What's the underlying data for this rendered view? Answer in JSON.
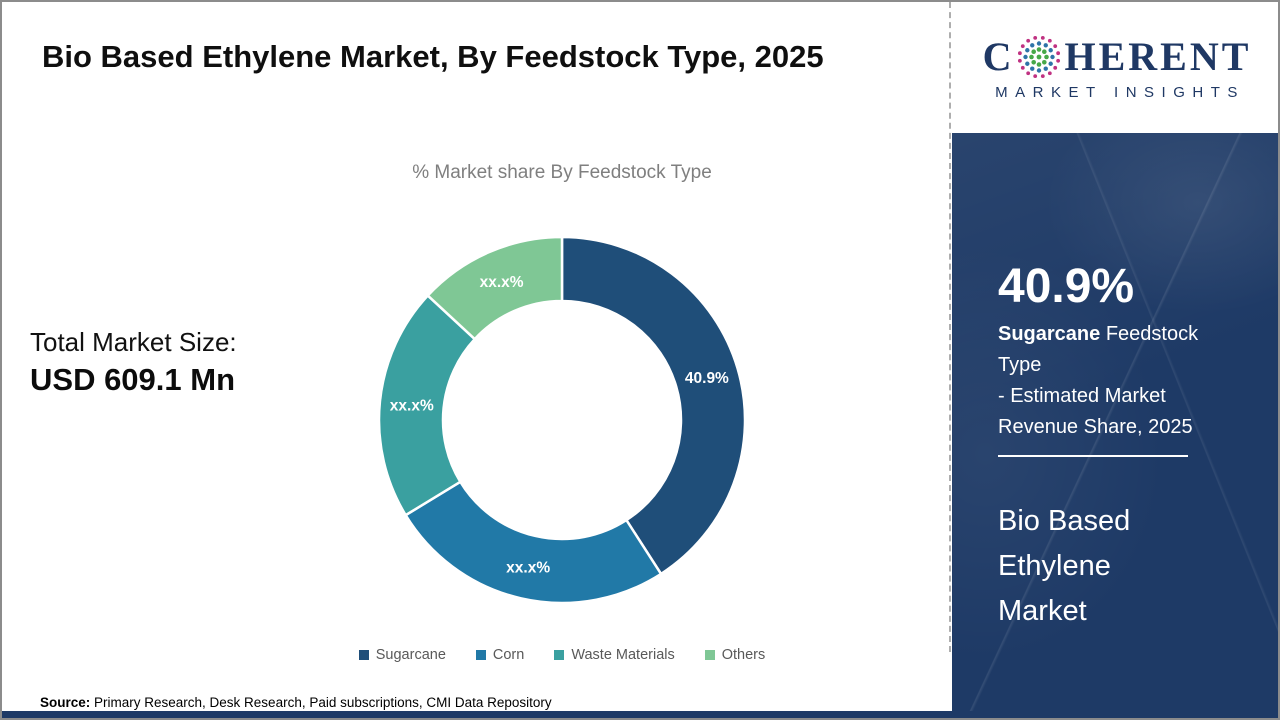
{
  "header": {
    "title": "Bio Based Ethylene Market, By Feedstock Type, 2025"
  },
  "logo": {
    "prefix": "C",
    "suffix": "HERENT",
    "subtitle": "MARKET INSIGHTS",
    "text_color": "#1f3864",
    "globe_colors": {
      "center": "#46a848",
      "mid": "#2e74a8",
      "outer": "#c03282"
    }
  },
  "left_panel": {
    "total_label": "Total Market Size:",
    "total_value": "USD 609.1 Mn"
  },
  "chart_data": {
    "type": "pie",
    "variant": "donut",
    "title": "% Market share By Feedstock Type",
    "categories": [
      "Sugarcane",
      "Corn",
      "Waste Materials",
      "Others"
    ],
    "values": [
      40.9,
      25.4,
      20.6,
      13.1
    ],
    "value_labels": [
      "40.9%",
      "xx.x%",
      "xx.x%",
      "xx.x%"
    ],
    "colors": [
      "#1f4e79",
      "#2179a7",
      "#3aa0a0",
      "#7fc795"
    ],
    "start_angle": 0,
    "clockwise": true,
    "legend_position": "bottom",
    "label_color": "#ffffff"
  },
  "sidebar": {
    "stat_value": "40.9%",
    "stat_line1_bold": "Sugarcane",
    "stat_line1_rest": " Feedstock Type",
    "stat_line2": "- Estimated Market",
    "stat_line3": "Revenue Share, 2025",
    "market_name": "Bio Based Ethylene Market",
    "background_color": "#1e3a66"
  },
  "footer": {
    "source_label": "Source:",
    "source_text": " Primary Research, Desk Research, Paid subscriptions, CMI Data Repository"
  }
}
